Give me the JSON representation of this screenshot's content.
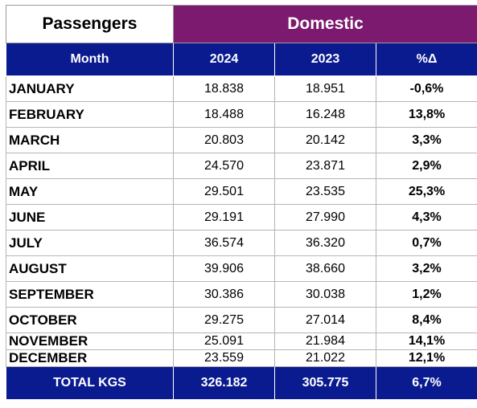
{
  "header": {
    "left_title": "Passengers",
    "right_title": "Domestic"
  },
  "columns": [
    "Month",
    "2024",
    "2023",
    "%Δ"
  ],
  "rows": [
    {
      "month": "JANUARY",
      "y2024": "18.838",
      "y2023": "18.951",
      "pct": "-0,6%"
    },
    {
      "month": "FEBRUARY",
      "y2024": "18.488",
      "y2023": "16.248",
      "pct": "13,8%"
    },
    {
      "month": "MARCH",
      "y2024": "20.803",
      "y2023": "20.142",
      "pct": "3,3%"
    },
    {
      "month": "APRIL",
      "y2024": "24.570",
      "y2023": "23.871",
      "pct": "2,9%"
    },
    {
      "month": "MAY",
      "y2024": "29.501",
      "y2023": "23.535",
      "pct": "25,3%"
    },
    {
      "month": "JUNE",
      "y2024": "29.191",
      "y2023": "27.990",
      "pct": "4,3%"
    },
    {
      "month": "JULY",
      "y2024": "36.574",
      "y2023": "36.320",
      "pct": "0,7%"
    },
    {
      "month": "AUGUST",
      "y2024": "39.906",
      "y2023": "38.660",
      "pct": "3,2%"
    },
    {
      "month": "SEPTEMBER",
      "y2024": "30.386",
      "y2023": "30.038",
      "pct": "1,2%"
    },
    {
      "month": "OCTOBER",
      "y2024": "29.275",
      "y2023": "27.014",
      "pct": "8,4%"
    },
    {
      "month": "NOVEMBER",
      "y2024": "25.091",
      "y2023": "21.984",
      "pct": "14,1%"
    },
    {
      "month": "DECEMBER",
      "y2024": "23.559",
      "y2023": "21.022",
      "pct": "12,1%"
    }
  ],
  "total": {
    "label": "TOTAL KGS",
    "y2024": "326.182",
    "y2023": "305.775",
    "pct": "6,7%"
  },
  "colors": {
    "title_accent": "#7b1a6e",
    "header_blue": "#0a1a8f"
  }
}
